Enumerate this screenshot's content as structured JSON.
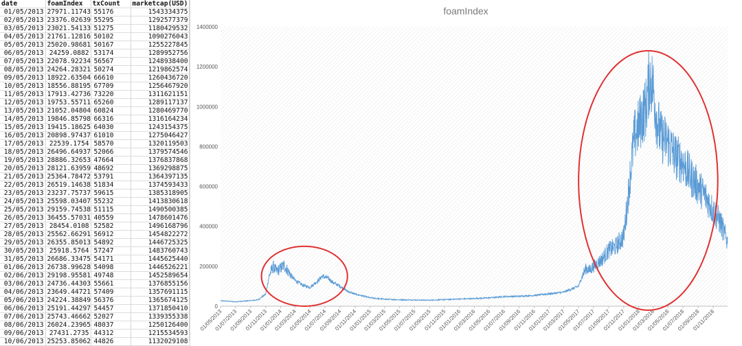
{
  "sheet": {
    "headers": [
      "date",
      "foamIndex",
      "txCount",
      "marketcap(USD)"
    ],
    "rows": [
      [
        "01/05/2013",
        "27971.11743",
        "55176",
        "1543334375"
      ],
      [
        "02/05/2013",
        "23376.02639",
        "55295",
        "1292577379"
      ],
      [
        "03/05/2013",
        "23021.54133",
        "51275",
        "1180429532"
      ],
      [
        "04/05/2013",
        "21761.12816",
        "50102",
        "1090276043"
      ],
      [
        "05/05/2013",
        "25020.98681",
        "50167",
        "1255227845"
      ],
      [
        "06/05/2013",
        "24259.0882",
        "53174",
        "1289952756"
      ],
      [
        "07/05/2013",
        "22078.92234",
        "56567",
        "1248938400"
      ],
      [
        "08/05/2013",
        "24264.28321",
        "50274",
        "1219862574"
      ],
      [
        "09/05/2013",
        "18922.63504",
        "66610",
        "1260436720"
      ],
      [
        "10/05/2013",
        "18556.88195",
        "67709",
        "1256467920"
      ],
      [
        "11/05/2013",
        "17913.42736",
        "73220",
        "1311621151"
      ],
      [
        "12/05/2013",
        "19753.55711",
        "65260",
        "1289117137"
      ],
      [
        "13/05/2013",
        "21052.04804",
        "60824",
        "1280469770"
      ],
      [
        "14/05/2013",
        "19846.85798",
        "66316",
        "1316164234"
      ],
      [
        "15/05/2013",
        "19415.18625",
        "64030",
        "1243154375"
      ],
      [
        "16/05/2013",
        "20898.97437",
        "61010",
        "1275046427"
      ],
      [
        "17/05/2013",
        "22539.1754",
        "58570",
        "1320119503"
      ],
      [
        "18/05/2013",
        "26496.64937",
        "52066",
        "1379574546"
      ],
      [
        "19/05/2013",
        "28886.32653",
        "47664",
        "1376837868"
      ],
      [
        "20/05/2013",
        "28121.63959",
        "48692",
        "1369298875"
      ],
      [
        "21/05/2013",
        "25364.78472",
        "53791",
        "1364397135"
      ],
      [
        "22/05/2013",
        "26519.14638",
        "51834",
        "1374593433"
      ],
      [
        "23/05/2013",
        "23237.75737",
        "59615",
        "1385318905"
      ],
      [
        "24/05/2013",
        "25598.03407",
        "55232",
        "1413830618"
      ],
      [
        "25/05/2013",
        "29159.74538",
        "51115",
        "1490500385"
      ],
      [
        "26/05/2013",
        "36455.57031",
        "40559",
        "1478601476"
      ],
      [
        "27/05/2013",
        "28454.0108",
        "52582",
        "1496168796"
      ],
      [
        "28/05/2013",
        "25562.66291",
        "56912",
        "1454822272"
      ],
      [
        "29/05/2013",
        "26355.85013",
        "54892",
        "1446725325"
      ],
      [
        "30/05/2013",
        "25918.5764",
        "57247",
        "1483760743"
      ],
      [
        "31/05/2013",
        "26686.33475",
        "54171",
        "1445625440"
      ],
      [
        "01/06/2013",
        "26738.99628",
        "54098",
        "1446526221"
      ],
      [
        "02/06/2013",
        "29198.95581",
        "49748",
        "1452589654"
      ],
      [
        "03/06/2013",
        "24736.44303",
        "55661",
        "1376855156"
      ],
      [
        "04/06/2013",
        "23649.44721",
        "57409",
        "1357691115"
      ],
      [
        "05/06/2013",
        "24224.38849",
        "56376",
        "1365674125"
      ],
      [
        "06/06/2013",
        "25191.44297",
        "54457",
        "1371850410"
      ],
      [
        "07/06/2013",
        "25743.46662",
        "52027",
        "1339355338"
      ],
      [
        "08/06/2013",
        "26024.23965",
        "48037",
        "1250126400"
      ],
      [
        "09/06/2013",
        "27431.2735",
        "44312",
        "1215534593"
      ],
      [
        "10/06/2013",
        "25253.85062",
        "44826",
        "1132029108"
      ]
    ]
  },
  "chart_data": {
    "type": "line",
    "title": "foamIndex",
    "xlabel": "",
    "ylabel": "",
    "ylim": [
      0,
      1400000
    ],
    "yticks": [
      0,
      200000,
      400000,
      600000,
      800000,
      1000000,
      1200000,
      1400000
    ],
    "x_start": "01/05/2013",
    "x_end": "30/12/2018",
    "xtick_labels": [
      "01/05/2013",
      "01/07/2013",
      "01/09/2013",
      "01/11/2013",
      "01/01/2014",
      "01/03/2014",
      "01/05/2014",
      "01/07/2014",
      "01/09/2014",
      "01/11/2014",
      "01/01/2015",
      "01/03/2015",
      "01/05/2015",
      "01/07/2015",
      "01/09/2015",
      "01/11/2015",
      "01/01/2016",
      "01/03/2016",
      "01/05/2016",
      "01/07/2016",
      "01/09/2016",
      "01/11/2016",
      "01/01/2017",
      "01/03/2017",
      "01/05/2017",
      "01/07/2017",
      "01/09/2017",
      "01/11/2017",
      "01/01/2018",
      "01/03/2018",
      "01/05/2018",
      "01/07/2018",
      "01/09/2018",
      "01/11/2018"
    ],
    "grid": "diagonal-hatch",
    "legend": "none",
    "series": [
      {
        "values": [
          [
            "01/05/2013",
            27000
          ],
          [
            "01/06/2013",
            25000
          ],
          [
            "01/07/2013",
            22000
          ],
          [
            "01/08/2013",
            25000
          ],
          [
            "01/09/2013",
            28000
          ],
          [
            "01/10/2013",
            32000
          ],
          [
            "01/11/2013",
            60000
          ],
          [
            "15/11/2013",
            150000
          ],
          [
            "01/12/2013",
            200000
          ],
          [
            "15/12/2013",
            175000
          ],
          [
            "01/01/2014",
            190000
          ],
          [
            "15/01/2014",
            205000
          ],
          [
            "01/02/2014",
            175000
          ],
          [
            "15/02/2014",
            150000
          ],
          [
            "01/03/2014",
            130000
          ],
          [
            "01/04/2014",
            105000
          ],
          [
            "01/05/2014",
            95000
          ],
          [
            "01/06/2014",
            125000
          ],
          [
            "20/06/2014",
            150000
          ],
          [
            "15/07/2014",
            140000
          ],
          [
            "01/08/2014",
            120000
          ],
          [
            "01/09/2014",
            100000
          ],
          [
            "01/10/2014",
            75000
          ],
          [
            "01/11/2014",
            60000
          ],
          [
            "01/12/2014",
            52000
          ],
          [
            "01/01/2015",
            42000
          ],
          [
            "01/03/2015",
            35000
          ],
          [
            "01/05/2015",
            32000
          ],
          [
            "01/07/2015",
            31000
          ],
          [
            "01/09/2015",
            30000
          ],
          [
            "01/11/2015",
            33000
          ],
          [
            "01/01/2016",
            36000
          ],
          [
            "01/03/2016",
            38000
          ],
          [
            "01/05/2016",
            42000
          ],
          [
            "01/07/2016",
            48000
          ],
          [
            "01/09/2016",
            50000
          ],
          [
            "01/11/2016",
            54000
          ],
          [
            "01/01/2017",
            62000
          ],
          [
            "01/03/2017",
            70000
          ],
          [
            "01/05/2017",
            100000
          ],
          [
            "15/05/2017",
            150000
          ],
          [
            "01/06/2017",
            190000
          ],
          [
            "15/06/2017",
            180000
          ],
          [
            "01/07/2017",
            200000
          ],
          [
            "01/08/2017",
            230000
          ],
          [
            "01/09/2017",
            280000
          ],
          [
            "01/10/2017",
            300000
          ],
          [
            "01/11/2017",
            350000
          ],
          [
            "15/11/2017",
            500000
          ],
          [
            "01/12/2017",
            700000
          ],
          [
            "15/12/2017",
            850000
          ],
          [
            "01/01/2018",
            900000
          ],
          [
            "15/01/2018",
            950000
          ],
          [
            "01/02/2018",
            1000000
          ],
          [
            "15/02/2018",
            1150000
          ],
          [
            "01/03/2018",
            1100000
          ],
          [
            "15/03/2018",
            950000
          ],
          [
            "01/04/2018",
            850000
          ],
          [
            "01/05/2018",
            820000
          ],
          [
            "01/06/2018",
            750000
          ],
          [
            "01/07/2018",
            720000
          ],
          [
            "01/08/2018",
            650000
          ],
          [
            "01/09/2018",
            600000
          ],
          [
            "01/10/2018",
            550000
          ],
          [
            "01/11/2018",
            480000
          ],
          [
            "01/12/2018",
            420000
          ],
          [
            "30/12/2018",
            320000
          ]
        ]
      }
    ],
    "annotations": [
      {
        "type": "ellipse",
        "color": "#e03030",
        "x_from": "15/10/2013",
        "x_to": "01/10/2014",
        "y_from": 0,
        "y_to": 300000
      },
      {
        "type": "ellipse",
        "color": "#e03030",
        "x_from": "01/05/2017",
        "x_to": "20/11/2018",
        "y_from": -20000,
        "y_to": 1280000
      }
    ],
    "line_color": "#5b9bd5"
  }
}
